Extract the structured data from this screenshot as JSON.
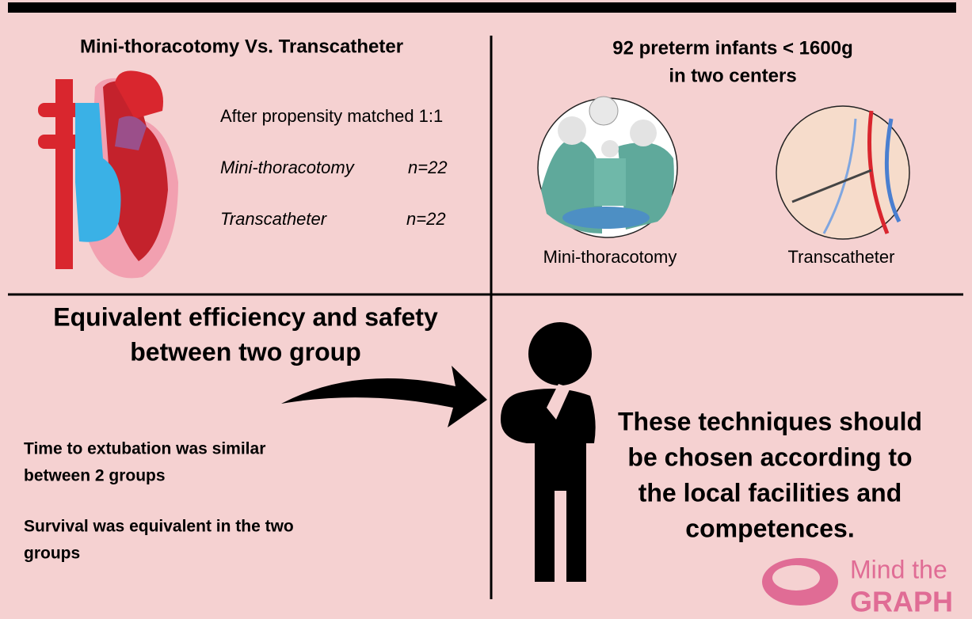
{
  "top_left": {
    "title": "Mini-thoracotomy Vs. Transcatheter",
    "matching": "After propensity matched 1:1",
    "groups": [
      {
        "name": "Mini-thoracotomy",
        "n": "n=22"
      },
      {
        "name": "Transcatheter",
        "n": "n=22"
      }
    ]
  },
  "top_right": {
    "title_lines": [
      "92 preterm infants < 1600g",
      "in two centers"
    ],
    "captions": [
      "Mini-thoracotomy",
      "Transcatheter"
    ]
  },
  "bottom_left": {
    "headline_lines": [
      "Equivalent efficiency and safety",
      "between two group"
    ],
    "findings": [
      [
        "Time to extubation was similar",
        "between 2 groups"
      ],
      [
        "Survival was equivalent in the two",
        "groups"
      ]
    ]
  },
  "bottom_right": {
    "conclusion_lines": [
      "These techniques should",
      "be chosen according to",
      "the local facilities and",
      "competences."
    ]
  },
  "logo": {
    "line1": "Mind the",
    "line2": "GRAPH"
  }
}
